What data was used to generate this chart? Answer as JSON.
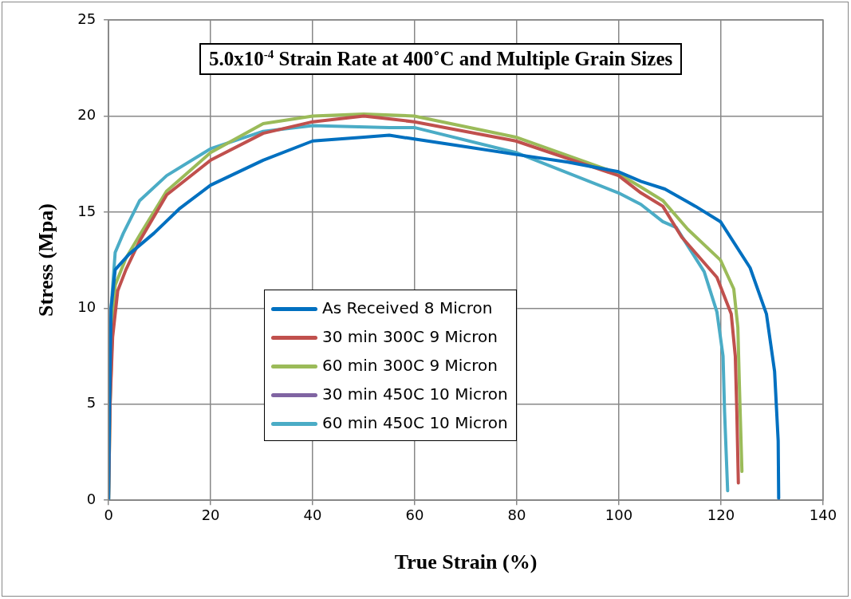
{
  "chart_data": {
    "type": "line",
    "title": "5.0x10$^{-4}$ Strain Rate at 400˚C and Multiple Grain Sizes",
    "xlabel": "True Strain (%)",
    "ylabel": "Stress (Mpa)",
    "xlim": [
      0,
      140
    ],
    "xticks": [
      0,
      20,
      40,
      60,
      80,
      100,
      120,
      140
    ],
    "ylim": [
      0,
      25
    ],
    "yticks": [
      0,
      5,
      10,
      15,
      20,
      25
    ],
    "grid": true,
    "legend": "center",
    "marker": "none",
    "line_style": "solid",
    "series": [
      {
        "name": "As Received 8 Micron",
        "color": "#0070c0",
        "x": [
          0,
          0.2,
          0.5,
          1.3,
          4,
          8.9,
          14,
          20,
          30.3,
          40,
          50,
          55,
          59.9,
          70,
          79.8,
          90,
          99.9,
          104.3,
          109,
          115,
          119.9,
          125.7,
          128.9,
          130.5,
          131.2,
          131.3
        ],
        "values": [
          0,
          5,
          10,
          12,
          12.8,
          13.9,
          15.2,
          16.4,
          17.7,
          18.7,
          18.9,
          19,
          18.8,
          18.4,
          18,
          17.6,
          17.1,
          16.6,
          16.2,
          15.3,
          14.5,
          12.1,
          9.7,
          6.7,
          3.1,
          0.1
        ]
      },
      {
        "name": "30 min 300C 9 Micron",
        "color": "#c0504d",
        "x": [
          0,
          0.3,
          0.8,
          1.8,
          3.4,
          6.1,
          11.4,
          20,
          30.3,
          40,
          50,
          59.9,
          79.8,
          99.9,
          104.3,
          108.6,
          112.3,
          119.2,
          122,
          122.8,
          123.1,
          123.4
        ],
        "values": [
          0,
          5,
          8.5,
          10.9,
          12,
          13.5,
          15.9,
          17.7,
          19.1,
          19.7,
          20,
          19.7,
          18.7,
          16.9,
          16,
          15.3,
          13.7,
          11.6,
          9.7,
          7.5,
          4.6,
          0.9
        ]
      },
      {
        "name": "60 min 300C 9 Micron",
        "color": "#9bbb59",
        "x": [
          0,
          0.3,
          0.7,
          1.3,
          3.4,
          6.1,
          11.4,
          20,
          30.3,
          40,
          50,
          59.9,
          79.8,
          99.9,
          104.3,
          108.6,
          113.5,
          119.9,
          122.5,
          123.3,
          123.6,
          124.1
        ],
        "values": [
          0,
          5,
          8.5,
          11.2,
          12.6,
          13.8,
          16.1,
          18.1,
          19.6,
          20,
          20.1,
          20,
          18.9,
          17,
          16.3,
          15.6,
          14.1,
          12.5,
          11,
          9,
          6,
          1.5
        ]
      },
      {
        "name": "30 min 450C 10 Micron",
        "color": "#8064a2"
      },
      {
        "name": "60 min 450C 10 Micron",
        "color": "#4bacc6",
        "x": [
          0,
          0.2,
          0.5,
          1.3,
          2.9,
          6.1,
          11.4,
          20,
          30.3,
          40,
          55,
          59.9,
          79.8,
          99.9,
          104.3,
          108.6,
          111.2,
          116.7,
          119.2,
          120.4,
          120.7,
          121.3
        ],
        "values": [
          0,
          5,
          10,
          12.9,
          13.9,
          15.6,
          16.9,
          18.3,
          19.2,
          19.5,
          19.4,
          19.4,
          18.1,
          16,
          15.4,
          14.5,
          14.2,
          11.9,
          9.8,
          7.5,
          4.6,
          0.5
        ]
      }
    ]
  }
}
